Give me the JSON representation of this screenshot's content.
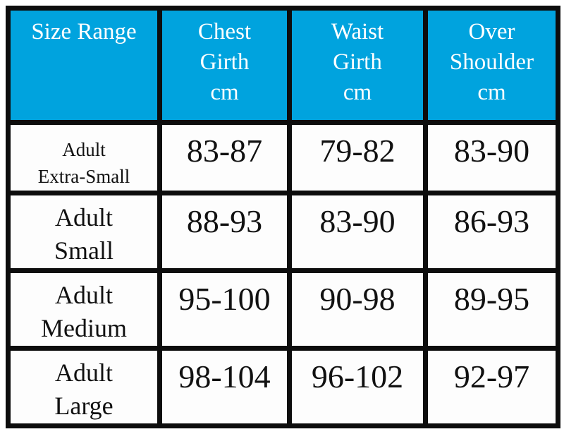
{
  "colors": {
    "header_bg": "#00A3DE",
    "header_text": "#FFFFFF",
    "body_text": "#111111",
    "border": "#0D0D0D",
    "cell_bg": "#FDFDFD"
  },
  "table": {
    "headers": [
      {
        "lines": [
          "Size Range"
        ]
      },
      {
        "lines": [
          "Chest",
          "Girth",
          "cm"
        ]
      },
      {
        "lines": [
          "Waist",
          "Girth",
          "cm"
        ]
      },
      {
        "lines": [
          "Over",
          "Shoulder",
          "cm"
        ]
      }
    ],
    "rows": [
      {
        "label_lines": [
          "Adult",
          "Extra-Small"
        ],
        "chest": "83-87",
        "waist": "79-82",
        "shoulder": "83-90"
      },
      {
        "label_lines": [
          "Adult",
          "Small"
        ],
        "chest": "88-93",
        "waist": "83-90",
        "shoulder": "86-93"
      },
      {
        "label_lines": [
          "Adult",
          "Medium"
        ],
        "chest": "95-100",
        "waist": "90-98",
        "shoulder": "89-95"
      },
      {
        "label_lines": [
          "Adult",
          "Large"
        ],
        "chest": "98-104",
        "waist": "96-102",
        "shoulder": "92-97"
      }
    ]
  },
  "chart_data": {
    "type": "table",
    "columns": [
      "Size Range",
      "Chest Girth cm",
      "Waist Girth cm",
      "Over Shoulder cm"
    ],
    "rows": [
      [
        "Adult Extra-Small",
        "83-87",
        "79-82",
        "83-90"
      ],
      [
        "Adult Small",
        "88-93",
        "83-90",
        "86-93"
      ],
      [
        "Adult Medium",
        "95-100",
        "90-98",
        "89-95"
      ],
      [
        "Adult Large",
        "98-104",
        "96-102",
        "92-97"
      ]
    ]
  }
}
